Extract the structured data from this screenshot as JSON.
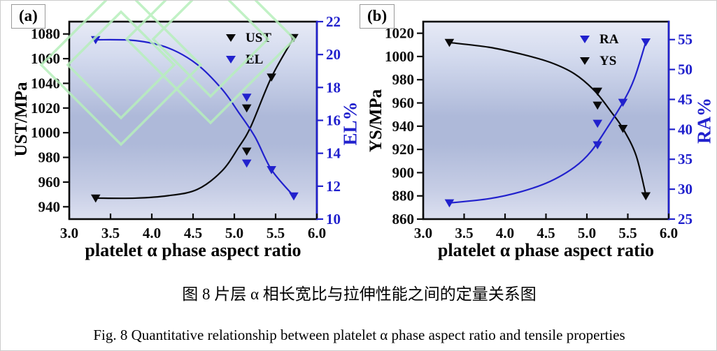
{
  "figure": {
    "caption_zh": "图 8  片层 α 相长宽比与拉伸性能之间的定量关系图",
    "caption_en": "Fig. 8 Quantitative relationship between platelet α phase aspect ratio and tensile properties"
  },
  "colors": {
    "black": "#0a0a0a",
    "blue": "#2121CD",
    "plot_bg_top": "#e7eaf6",
    "plot_bg_upper": "#d3daee",
    "plot_bg_mid": "#aeb9d9",
    "plot_bg_lower": "#c6cde5",
    "plot_bg_bottom": "#dce0f0",
    "watermark_green": "#b7efbc",
    "panel_box_border": "#9a9a9a"
  },
  "chart_data": [
    {
      "id": "a",
      "type": "scatter",
      "panel_label": "(a)",
      "xlabel": "platelet α phase aspect ratio",
      "xlim": [
        3.0,
        6.0
      ],
      "x_ticks": [
        "3.0",
        "3.5",
        "4.0",
        "4.5",
        "5.0",
        "5.5",
        "6.0"
      ],
      "grid": false,
      "legend_position": "top-center-inside",
      "left_axis": {
        "label": "UST/MPa",
        "color": "black",
        "lim": [
          930,
          1090
        ],
        "ticks": [
          "940",
          "960",
          "980",
          "1000",
          "1020",
          "1040",
          "1060",
          "1080"
        ]
      },
      "right_axis": {
        "label": "EL%",
        "color": "blue",
        "lim": [
          10,
          22
        ],
        "ticks": [
          "10",
          "12",
          "14",
          "16",
          "18",
          "20",
          "22"
        ]
      },
      "legend": [
        {
          "label": "UST",
          "color": "black"
        },
        {
          "label": "EL",
          "color": "blue"
        }
      ],
      "series": [
        {
          "name": "UST",
          "axis": "left",
          "color": "black",
          "marker": "triangle-down",
          "points": [
            [
              3.32,
              947
            ],
            [
              5.15,
              1020
            ],
            [
              5.15,
              985
            ],
            [
              5.45,
              1045
            ],
            [
              5.72,
              1077
            ]
          ],
          "fit_curve": [
            [
              3.32,
              947
            ],
            [
              3.8,
              947
            ],
            [
              4.2,
              949
            ],
            [
              4.55,
              954
            ],
            [
              4.85,
              969
            ],
            [
              5.05,
              988
            ],
            [
              5.2,
              1005
            ],
            [
              5.45,
              1045
            ],
            [
              5.72,
              1077
            ]
          ]
        },
        {
          "name": "EL",
          "axis": "right",
          "color": "blue",
          "marker": "triangle-down",
          "points": [
            [
              3.32,
              20.9
            ],
            [
              5.15,
              17.4
            ],
            [
              5.15,
              13.4
            ],
            [
              5.45,
              13.0
            ],
            [
              5.72,
              11.4
            ]
          ],
          "fit_curve": [
            [
              3.32,
              20.9
            ],
            [
              3.8,
              20.85
            ],
            [
              4.2,
              20.4
            ],
            [
              4.55,
              19.4
            ],
            [
              4.85,
              17.9
            ],
            [
              5.05,
              16.5
            ],
            [
              5.25,
              15.0
            ],
            [
              5.45,
              13.0
            ],
            [
              5.72,
              11.4
            ]
          ]
        }
      ]
    },
    {
      "id": "b",
      "type": "scatter",
      "panel_label": "(b)",
      "xlabel": "platelet α phase aspect ratio",
      "xlim": [
        3.0,
        6.0
      ],
      "x_ticks": [
        "3.0",
        "3.5",
        "4.0",
        "4.5",
        "5.0",
        "5.5",
        "6.0"
      ],
      "grid": false,
      "legend_position": "top-center-inside",
      "left_axis": {
        "label": "YS/MPa",
        "color": "black",
        "lim": [
          860,
          1030
        ],
        "ticks": [
          "860",
          "880",
          "900",
          "920",
          "940",
          "960",
          "980",
          "1000",
          "1020"
        ]
      },
      "right_axis": {
        "label": "RA%",
        "color": "blue",
        "lim": [
          25,
          58
        ],
        "ticks": [
          "25",
          "30",
          "35",
          "40",
          "45",
          "50",
          "55"
        ]
      },
      "legend": [
        {
          "label": "RA",
          "color": "blue"
        },
        {
          "label": "YS",
          "color": "black"
        }
      ],
      "series": [
        {
          "name": "YS",
          "axis": "left",
          "color": "black",
          "marker": "triangle-down",
          "points": [
            [
              3.32,
              1012
            ],
            [
              5.13,
              970
            ],
            [
              5.13,
              958
            ],
            [
              5.44,
              938
            ],
            [
              5.72,
              880
            ]
          ],
          "fit_curve": [
            [
              3.32,
              1012
            ],
            [
              3.8,
              1008
            ],
            [
              4.2,
              1002
            ],
            [
              4.55,
              995
            ],
            [
              4.85,
              985
            ],
            [
              5.1,
              970
            ],
            [
              5.3,
              952
            ],
            [
              5.44,
              938
            ],
            [
              5.6,
              915
            ],
            [
              5.72,
              881
            ]
          ]
        },
        {
          "name": "RA",
          "axis": "right",
          "color": "blue",
          "marker": "triangle-down",
          "points": [
            [
              3.32,
              27.7
            ],
            [
              5.13,
              41.0
            ],
            [
              5.13,
              37.4
            ],
            [
              5.44,
              44.5
            ],
            [
              5.72,
              54.6
            ]
          ],
          "fit_curve": [
            [
              3.32,
              27.7
            ],
            [
              3.8,
              28.4
            ],
            [
              4.2,
              29.6
            ],
            [
              4.55,
              31.3
            ],
            [
              4.85,
              33.7
            ],
            [
              5.05,
              36.3
            ],
            [
              5.25,
              40.3
            ],
            [
              5.44,
              44.5
            ],
            [
              5.58,
              48.5
            ],
            [
              5.72,
              54.6
            ]
          ]
        }
      ]
    }
  ]
}
